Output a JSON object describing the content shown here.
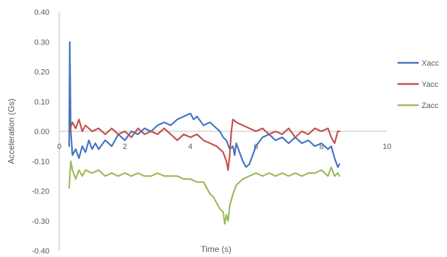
{
  "chart_data": {
    "type": "line",
    "title": "",
    "xlabel": "Time (s)",
    "ylabel": "Acceleration (Gs)",
    "xlim": [
      0,
      10
    ],
    "ylim": [
      -0.4,
      0.4
    ],
    "xticks": [
      "0",
      "2",
      "4",
      "6",
      "8",
      "10"
    ],
    "yticks": [
      "0.40",
      "0.30",
      "0.20",
      "0.10",
      "0.00",
      "-0.10",
      "-0.20",
      "-0.30",
      "-0.40"
    ],
    "grid": false,
    "legend_position": "right",
    "series": [
      {
        "name": "Xacc",
        "color": "#4472C4",
        "points": [
          [
            0.3,
            -0.05
          ],
          [
            0.32,
            0.3
          ],
          [
            0.35,
            0.0
          ],
          [
            0.4,
            -0.08
          ],
          [
            0.5,
            -0.06
          ],
          [
            0.6,
            -0.09
          ],
          [
            0.7,
            -0.05
          ],
          [
            0.8,
            -0.07
          ],
          [
            0.9,
            -0.03
          ],
          [
            1.0,
            -0.06
          ],
          [
            1.1,
            -0.04
          ],
          [
            1.2,
            -0.06
          ],
          [
            1.4,
            -0.03
          ],
          [
            1.6,
            -0.05
          ],
          [
            1.8,
            -0.01
          ],
          [
            2.0,
            -0.03
          ],
          [
            2.2,
            0.0
          ],
          [
            2.4,
            -0.01
          ],
          [
            2.6,
            0.01
          ],
          [
            2.8,
            0.0
          ],
          [
            3.0,
            0.02
          ],
          [
            3.2,
            0.03
          ],
          [
            3.4,
            0.02
          ],
          [
            3.6,
            0.04
          ],
          [
            3.8,
            0.05
          ],
          [
            4.0,
            0.06
          ],
          [
            4.1,
            0.04
          ],
          [
            4.2,
            0.05
          ],
          [
            4.4,
            0.02
          ],
          [
            4.6,
            0.03
          ],
          [
            4.8,
            0.01
          ],
          [
            4.9,
            0.0
          ],
          [
            5.0,
            -0.02
          ],
          [
            5.1,
            -0.03
          ],
          [
            5.2,
            -0.06
          ],
          [
            5.3,
            -0.05
          ],
          [
            5.35,
            -0.08
          ],
          [
            5.4,
            -0.04
          ],
          [
            5.5,
            -0.07
          ],
          [
            5.6,
            -0.1
          ],
          [
            5.7,
            -0.12
          ],
          [
            5.8,
            -0.11
          ],
          [
            5.9,
            -0.08
          ],
          [
            6.0,
            -0.05
          ],
          [
            6.2,
            -0.02
          ],
          [
            6.4,
            -0.01
          ],
          [
            6.6,
            -0.03
          ],
          [
            6.8,
            -0.02
          ],
          [
            7.0,
            -0.04
          ],
          [
            7.2,
            -0.02
          ],
          [
            7.4,
            -0.04
          ],
          [
            7.6,
            -0.03
          ],
          [
            7.8,
            -0.05
          ],
          [
            8.0,
            -0.04
          ],
          [
            8.2,
            -0.06
          ],
          [
            8.3,
            -0.05
          ],
          [
            8.4,
            -0.09
          ],
          [
            8.5,
            -0.12
          ],
          [
            8.55,
            -0.11
          ]
        ]
      },
      {
        "name": "Yacc",
        "color": "#C0504D",
        "points": [
          [
            0.3,
            0.0
          ],
          [
            0.4,
            0.03
          ],
          [
            0.5,
            0.01
          ],
          [
            0.6,
            0.04
          ],
          [
            0.7,
            0.0
          ],
          [
            0.8,
            0.02
          ],
          [
            1.0,
            0.0
          ],
          [
            1.2,
            0.01
          ],
          [
            1.4,
            -0.01
          ],
          [
            1.6,
            0.01
          ],
          [
            1.8,
            -0.01
          ],
          [
            2.0,
            0.0
          ],
          [
            2.2,
            -0.02
          ],
          [
            2.4,
            0.01
          ],
          [
            2.6,
            -0.01
          ],
          [
            2.8,
            0.0
          ],
          [
            3.0,
            -0.01
          ],
          [
            3.2,
            0.01
          ],
          [
            3.4,
            -0.01
          ],
          [
            3.6,
            -0.03
          ],
          [
            3.8,
            -0.01
          ],
          [
            4.0,
            -0.02
          ],
          [
            4.2,
            -0.01
          ],
          [
            4.4,
            -0.03
          ],
          [
            4.6,
            -0.04
          ],
          [
            4.8,
            -0.05
          ],
          [
            5.0,
            -0.07
          ],
          [
            5.1,
            -0.1
          ],
          [
            5.15,
            -0.13
          ],
          [
            5.2,
            -0.08
          ],
          [
            5.25,
            0.0
          ],
          [
            5.3,
            0.04
          ],
          [
            5.4,
            0.03
          ],
          [
            5.6,
            0.02
          ],
          [
            5.8,
            0.01
          ],
          [
            6.0,
            0.0
          ],
          [
            6.2,
            0.01
          ],
          [
            6.4,
            -0.01
          ],
          [
            6.6,
            0.0
          ],
          [
            6.8,
            -0.01
          ],
          [
            7.0,
            0.01
          ],
          [
            7.2,
            -0.02
          ],
          [
            7.4,
            0.0
          ],
          [
            7.6,
            -0.01
          ],
          [
            7.8,
            0.01
          ],
          [
            8.0,
            0.0
          ],
          [
            8.2,
            0.01
          ],
          [
            8.3,
            -0.02
          ],
          [
            8.4,
            -0.04
          ],
          [
            8.5,
            0.0
          ],
          [
            8.55,
            0.0
          ]
        ]
      },
      {
        "name": "Zacc",
        "color": "#9BBB59",
        "points": [
          [
            0.3,
            -0.19
          ],
          [
            0.35,
            -0.1
          ],
          [
            0.4,
            -0.13
          ],
          [
            0.5,
            -0.16
          ],
          [
            0.6,
            -0.13
          ],
          [
            0.7,
            -0.15
          ],
          [
            0.8,
            -0.13
          ],
          [
            1.0,
            -0.14
          ],
          [
            1.2,
            -0.13
          ],
          [
            1.4,
            -0.15
          ],
          [
            1.6,
            -0.14
          ],
          [
            1.8,
            -0.15
          ],
          [
            2.0,
            -0.14
          ],
          [
            2.2,
            -0.15
          ],
          [
            2.4,
            -0.14
          ],
          [
            2.6,
            -0.15
          ],
          [
            2.8,
            -0.15
          ],
          [
            3.0,
            -0.14
          ],
          [
            3.2,
            -0.15
          ],
          [
            3.4,
            -0.15
          ],
          [
            3.6,
            -0.15
          ],
          [
            3.8,
            -0.16
          ],
          [
            4.0,
            -0.16
          ],
          [
            4.2,
            -0.17
          ],
          [
            4.4,
            -0.17
          ],
          [
            4.5,
            -0.19
          ],
          [
            4.6,
            -0.21
          ],
          [
            4.7,
            -0.22
          ],
          [
            4.8,
            -0.24
          ],
          [
            4.9,
            -0.26
          ],
          [
            5.0,
            -0.27
          ],
          [
            5.05,
            -0.31
          ],
          [
            5.1,
            -0.28
          ],
          [
            5.15,
            -0.3
          ],
          [
            5.2,
            -0.25
          ],
          [
            5.3,
            -0.21
          ],
          [
            5.4,
            -0.18
          ],
          [
            5.6,
            -0.16
          ],
          [
            5.8,
            -0.15
          ],
          [
            6.0,
            -0.14
          ],
          [
            6.2,
            -0.15
          ],
          [
            6.4,
            -0.14
          ],
          [
            6.6,
            -0.15
          ],
          [
            6.8,
            -0.14
          ],
          [
            7.0,
            -0.15
          ],
          [
            7.2,
            -0.14
          ],
          [
            7.4,
            -0.15
          ],
          [
            7.6,
            -0.14
          ],
          [
            7.8,
            -0.14
          ],
          [
            8.0,
            -0.13
          ],
          [
            8.2,
            -0.15
          ],
          [
            8.3,
            -0.12
          ],
          [
            8.4,
            -0.15
          ],
          [
            8.5,
            -0.14
          ],
          [
            8.55,
            -0.15
          ]
        ]
      }
    ]
  }
}
